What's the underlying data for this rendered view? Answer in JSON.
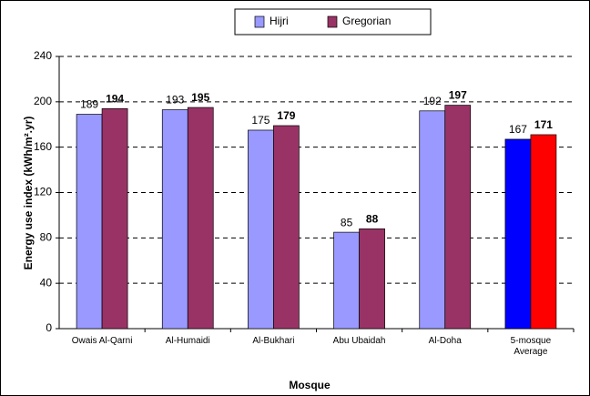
{
  "chart_data": {
    "type": "bar",
    "x_label": "Mosque",
    "y_label": "Energy use index (kWh/m².yr)",
    "categories": [
      "Owais Al-Qarni",
      "Al-Humaidi",
      "Al-Bukhari",
      "Abu Ubaidah",
      "Al-Doha",
      "5-mosque\nAverage"
    ],
    "series": [
      {
        "name": "Hijri",
        "color": "#9999ff",
        "colors": [
          "#9999ff",
          "#9999ff",
          "#9999ff",
          "#9999ff",
          "#9999ff",
          "#0000ff"
        ],
        "values": [
          189,
          193,
          175,
          85,
          192,
          167
        ],
        "label_weight": "normal"
      },
      {
        "name": "Gregorian",
        "color": "#993366",
        "colors": [
          "#993366",
          "#993366",
          "#993366",
          "#993366",
          "#993366",
          "#ff0000"
        ],
        "values": [
          194,
          195,
          179,
          88,
          197,
          171
        ],
        "label_weight": "bold"
      }
    ],
    "ylim": [
      0,
      240
    ],
    "yticks": [
      0,
      40,
      80,
      120,
      160,
      200,
      240
    ],
    "grid": true,
    "legend": "top"
  }
}
